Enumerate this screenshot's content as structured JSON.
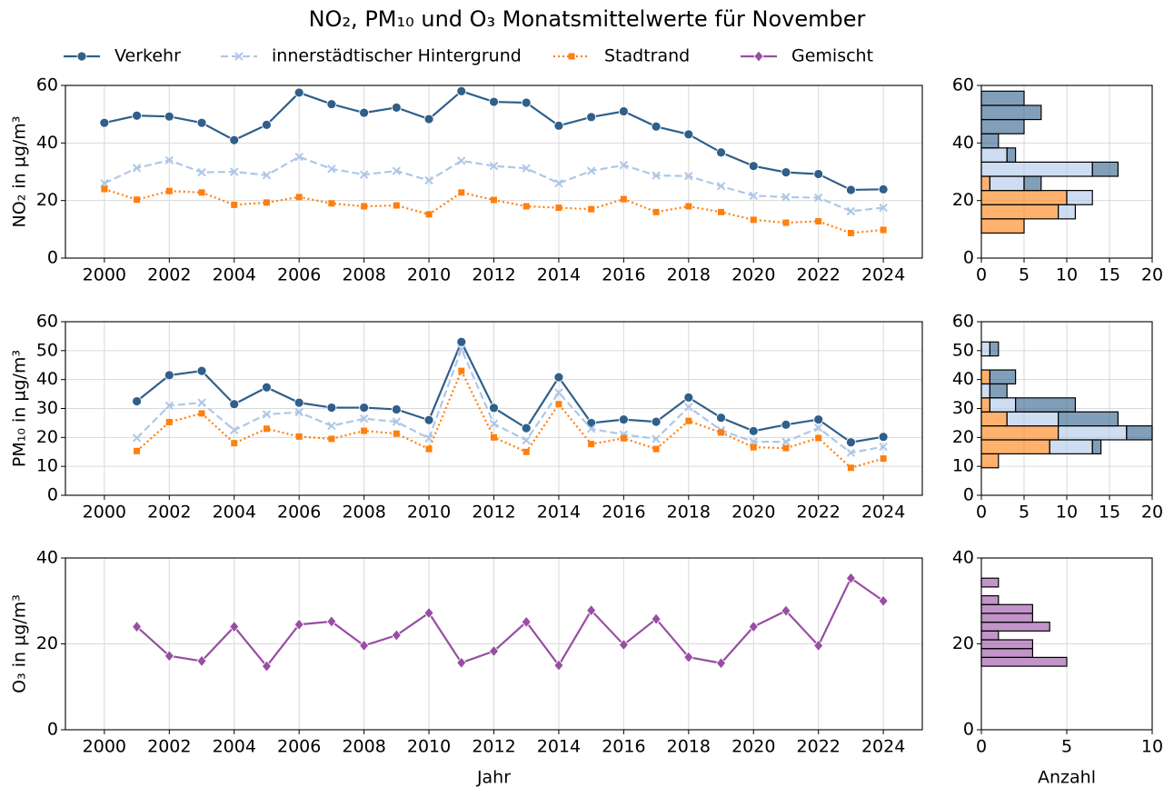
{
  "title": "NO₂, PM₁₀ und O₃ Monatsmittelwerte für November",
  "chart_data": [
    {
      "type": "line",
      "ylabel": "NO₂ in µg/m³",
      "x": [
        2000,
        2001,
        2002,
        2003,
        2004,
        2005,
        2006,
        2007,
        2008,
        2009,
        2010,
        2011,
        2012,
        2013,
        2014,
        2015,
        2016,
        2017,
        2018,
        2019,
        2020,
        2021,
        2022,
        2023,
        2024
      ],
      "xlim": [
        1998.8,
        2025.2
      ],
      "xticks": [
        2000,
        2002,
        2004,
        2006,
        2008,
        2010,
        2012,
        2014,
        2016,
        2018,
        2020,
        2022,
        2024
      ],
      "ylim": [
        0,
        60
      ],
      "yticks": [
        0,
        20,
        40,
        60
      ],
      "grid": true,
      "series": [
        {
          "name": "Verkehr",
          "color": "#2f5f8a",
          "marker": "circle",
          "linestyle": "solid",
          "values": [
            47,
            49.5,
            49.2,
            47,
            41,
            46.3,
            57.5,
            53.5,
            50.5,
            52.3,
            48.3,
            58,
            54.3,
            54,
            46,
            49,
            51,
            45.7,
            43,
            36.7,
            32,
            29.8,
            29.2,
            23.7,
            23.9
          ]
        },
        {
          "name": "innerstädtischer Hintergrund",
          "color": "#aec7e8",
          "marker": "x",
          "linestyle": "dashed",
          "values": [
            26,
            31.3,
            34,
            29.8,
            30,
            28.8,
            35.2,
            31,
            29,
            30.3,
            27,
            33.8,
            32,
            31.2,
            26,
            30.3,
            32.3,
            28.7,
            28.5,
            25,
            21.7,
            21.2,
            21,
            16.3,
            17.5
          ]
        },
        {
          "name": "Stadtrand",
          "color": "#ff7f0e",
          "marker": "square",
          "linestyle": "dotted",
          "values": [
            24,
            20.3,
            23.3,
            22.8,
            18.5,
            19.3,
            21.2,
            19,
            18,
            18.3,
            15.2,
            22.8,
            20.2,
            18,
            17.5,
            17,
            20.5,
            16,
            18,
            16,
            13.3,
            12.3,
            12.8,
            8.7,
            9.8
          ]
        }
      ]
    },
    {
      "type": "histogram",
      "orientation": "horizontal",
      "stacked": true,
      "bins": [
        8.7,
        13.63,
        18.56,
        23.49,
        28.42,
        33.35,
        38.28,
        43.21,
        48.14,
        53.07,
        58
      ],
      "xlim": [
        0,
        20
      ],
      "xticks": [
        0,
        5,
        10,
        15,
        20
      ],
      "ylim": [
        0,
        60
      ],
      "yticks": [
        0,
        20,
        40,
        60
      ],
      "grid": true,
      "series": [
        {
          "color": "#ff7f0e",
          "values": [
            5,
            9,
            10,
            1,
            0,
            0,
            0,
            0,
            0,
            0
          ]
        },
        {
          "color": "#aec7e8",
          "values": [
            0,
            2,
            3,
            4,
            13,
            3,
            0,
            0,
            0,
            0
          ]
        },
        {
          "color": "#2f5f8a",
          "values": [
            0,
            0,
            0,
            2,
            3,
            1,
            2,
            5,
            7,
            5
          ]
        }
      ]
    },
    {
      "type": "line",
      "ylabel": "PM₁₀ in µg/m³",
      "x": [
        2001,
        2002,
        2003,
        2004,
        2005,
        2006,
        2007,
        2008,
        2009,
        2010,
        2011,
        2012,
        2013,
        2014,
        2015,
        2016,
        2017,
        2018,
        2019,
        2020,
        2021,
        2022,
        2023,
        2024
      ],
      "xlim": [
        1998.8,
        2025.2
      ],
      "xticks": [
        2000,
        2002,
        2004,
        2006,
        2008,
        2010,
        2012,
        2014,
        2016,
        2018,
        2020,
        2022,
        2024
      ],
      "ylim": [
        0,
        60
      ],
      "yticks": [
        0,
        10,
        20,
        30,
        40,
        50,
        60
      ],
      "grid": true,
      "series": [
        {
          "name": "Verkehr",
          "color": "#2f5f8a",
          "marker": "circle",
          "linestyle": "solid",
          "values": [
            32.5,
            41.5,
            43,
            31.5,
            37.3,
            32,
            30.3,
            30.3,
            29.7,
            26,
            53,
            30.2,
            23.2,
            40.8,
            25,
            26.2,
            25.4,
            33.8,
            26.8,
            22.2,
            24.4,
            26.2,
            18.3,
            20.2
          ]
        },
        {
          "name": "innerstädtischer Hintergrund",
          "color": "#aec7e8",
          "marker": "x",
          "linestyle": "dashed",
          "values": [
            19.8,
            31,
            32,
            22.5,
            28,
            28.7,
            24,
            26.5,
            25.4,
            19.7,
            50.5,
            24.7,
            19,
            35.5,
            23,
            21,
            19.5,
            30.5,
            22.5,
            18.5,
            18.5,
            23.3,
            14.7,
            16.8
          ]
        },
        {
          "name": "Stadtrand",
          "color": "#ff7f0e",
          "marker": "square",
          "linestyle": "dotted",
          "values": [
            15.3,
            25.3,
            28.3,
            18,
            23,
            20.3,
            19.5,
            22.3,
            21.3,
            16,
            43,
            20,
            15,
            31.5,
            17.7,
            19.7,
            16,
            25.7,
            21.7,
            16.6,
            16.3,
            19.8,
            9.5,
            12.7
          ]
        }
      ]
    },
    {
      "type": "histogram",
      "orientation": "horizontal",
      "stacked": true,
      "bins": [
        9.5,
        14.33,
        19.17,
        24,
        28.83,
        33.67,
        38.5,
        43.33,
        48.17,
        53
      ],
      "xlim": [
        0,
        20
      ],
      "xticks": [
        0,
        5,
        10,
        15,
        20
      ],
      "ylim": [
        0,
        60
      ],
      "yticks": [
        0,
        10,
        20,
        30,
        40,
        50,
        60
      ],
      "grid": true,
      "series": [
        {
          "color": "#ff7f0e",
          "values": [
            2,
            8,
            9,
            3,
            1,
            0,
            1,
            0,
            0
          ]
        },
        {
          "color": "#aec7e8",
          "values": [
            0,
            5,
            8,
            6,
            3,
            1,
            0,
            0,
            1
          ]
        },
        {
          "color": "#2f5f8a",
          "values": [
            0,
            1,
            3,
            7,
            7,
            2,
            3,
            0,
            1
          ]
        }
      ]
    },
    {
      "type": "line",
      "ylabel": "O₃ in µg/m³",
      "xlabel": "Jahr",
      "x": [
        2001,
        2002,
        2003,
        2004,
        2005,
        2006,
        2007,
        2008,
        2009,
        2010,
        2011,
        2012,
        2013,
        2014,
        2015,
        2016,
        2017,
        2018,
        2019,
        2020,
        2021,
        2022,
        2023,
        2024
      ],
      "xlim": [
        1998.8,
        2025.2
      ],
      "xticks": [
        2000,
        2002,
        2004,
        2006,
        2008,
        2010,
        2012,
        2014,
        2016,
        2018,
        2020,
        2022,
        2024
      ],
      "ylim": [
        0,
        40
      ],
      "yticks": [
        0,
        20,
        40
      ],
      "grid": true,
      "series": [
        {
          "name": "Gemischt",
          "color": "#984ea3",
          "marker": "diamond",
          "linestyle": "solid",
          "values": [
            24,
            17.2,
            16,
            24,
            14.8,
            24.5,
            25.2,
            19.6,
            22,
            27.2,
            15.6,
            18.3,
            25.1,
            15,
            27.8,
            19.8,
            25.8,
            16.9,
            15.5,
            24,
            27.7,
            19.6,
            35.3,
            30
          ]
        }
      ]
    },
    {
      "type": "histogram",
      "orientation": "horizontal",
      "stacked": true,
      "xlabel": "Anzahl",
      "bins": [
        14.8,
        16.85,
        18.9,
        20.95,
        23,
        25.05,
        27.1,
        29.15,
        31.2,
        33.25,
        35.3
      ],
      "xlim": [
        0,
        10
      ],
      "xticks": [
        0,
        5,
        10
      ],
      "ylim": [
        0,
        40
      ],
      "yticks": [
        0,
        20,
        40
      ],
      "grid": true,
      "series": [
        {
          "color": "#984ea3",
          "values": [
            5,
            3,
            3,
            1,
            4,
            3,
            3,
            1,
            0,
            1
          ]
        }
      ]
    }
  ]
}
